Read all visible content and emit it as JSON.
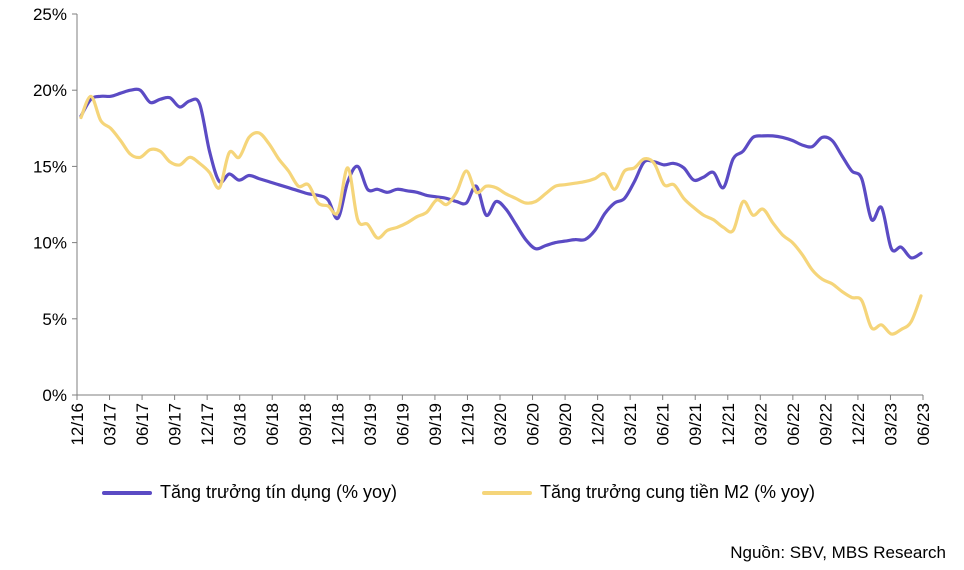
{
  "chart_data": {
    "type": "line",
    "title": "",
    "xlabel": "",
    "ylabel": "",
    "ylim": [
      0,
      25
    ],
    "yticks": [
      "0%",
      "5%",
      "10%",
      "15%",
      "20%",
      "25%"
    ],
    "grid": false,
    "legend_position": "bottom",
    "x_tick_labels": [
      "12/16",
      "03/17",
      "06/17",
      "09/17",
      "12/17",
      "03/18",
      "06/18",
      "09/18",
      "12/18",
      "03/19",
      "06/19",
      "09/19",
      "12/19",
      "03/20",
      "06/20",
      "09/20",
      "12/20",
      "03/21",
      "06/21",
      "09/21",
      "12/21",
      "03/22",
      "06/22",
      "09/22",
      "12/22",
      "03/23",
      "06/23"
    ],
    "series": [
      {
        "name": "Tăng trưởng tín dụng (% yoy)",
        "color": "#5B4BC4",
        "values": [
          18.3,
          19.4,
          19.6,
          19.6,
          19.8,
          20.0,
          20.0,
          19.2,
          19.4,
          19.5,
          18.9,
          19.3,
          19.1,
          16.0,
          14.0,
          14.5,
          14.1,
          14.4,
          14.2,
          14.0,
          13.8,
          13.6,
          13.4,
          13.2,
          13.1,
          12.8,
          11.6,
          14.0,
          15.0,
          13.5,
          13.5,
          13.3,
          13.5,
          13.4,
          13.3,
          13.1,
          13.0,
          12.9,
          12.7,
          12.6,
          13.7,
          11.8,
          12.7,
          12.2,
          11.2,
          10.2,
          9.6,
          9.8,
          10.0,
          10.1,
          10.2,
          10.2,
          10.8,
          11.9,
          12.6,
          12.9,
          14.0,
          15.3,
          15.3,
          15.1,
          15.2,
          14.9,
          14.1,
          14.3,
          14.6,
          13.6,
          15.5,
          16.0,
          16.9,
          17.0,
          17.0,
          16.9,
          16.7,
          16.4,
          16.3,
          16.9,
          16.7,
          15.7,
          14.7,
          14.2,
          11.5,
          12.3,
          9.6,
          9.7,
          9.0,
          9.3
        ]
      },
      {
        "name": "Tăng trưởng cung tiền M2 (% yoy)",
        "color": "#F5D57A",
        "values": [
          18.2,
          19.6,
          18.0,
          17.5,
          16.7,
          15.8,
          15.6,
          16.1,
          16.0,
          15.3,
          15.1,
          15.6,
          15.2,
          14.6,
          13.6,
          15.9,
          15.6,
          16.9,
          17.2,
          16.5,
          15.5,
          14.7,
          13.7,
          13.8,
          12.6,
          12.4,
          12.0,
          14.9,
          11.5,
          11.2,
          10.3,
          10.8,
          11.0,
          11.3,
          11.7,
          12.0,
          12.8,
          12.5,
          13.3,
          14.7,
          13.3,
          13.7,
          13.6,
          13.2,
          12.9,
          12.6,
          12.7,
          13.2,
          13.7,
          13.8,
          13.9,
          14.0,
          14.2,
          14.5,
          13.5,
          14.7,
          14.9,
          15.5,
          15.2,
          13.8,
          13.8,
          12.9,
          12.3,
          11.8,
          11.5,
          11.0,
          10.8,
          12.7,
          11.8,
          12.2,
          11.3,
          10.5,
          10.0,
          9.2,
          8.2,
          7.6,
          7.3,
          6.8,
          6.4,
          6.2,
          4.4,
          4.6,
          4.0,
          4.3,
          4.8,
          6.5
        ]
      }
    ]
  },
  "source_note": "Nguồn: SBV, MBS Research"
}
